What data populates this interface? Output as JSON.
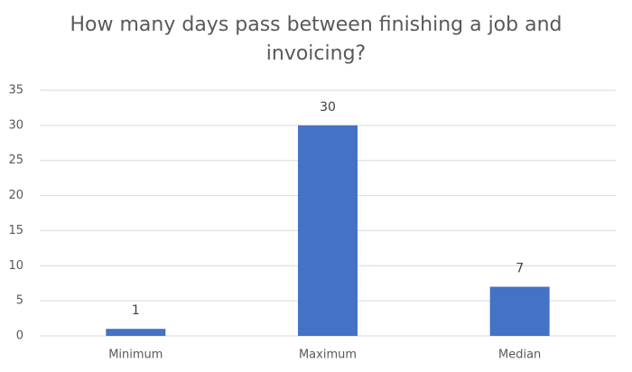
{
  "chart_data": {
    "type": "bar",
    "title": "How many days pass between finishing a job and invoicing?",
    "categories": [
      "Minimum",
      "Maximum",
      "Median"
    ],
    "values": [
      1,
      30,
      7
    ],
    "color": "#4472c4",
    "ylim": [
      0,
      35
    ],
    "yticks": [
      0,
      5,
      10,
      15,
      20,
      25,
      30,
      35
    ],
    "grid": true
  }
}
